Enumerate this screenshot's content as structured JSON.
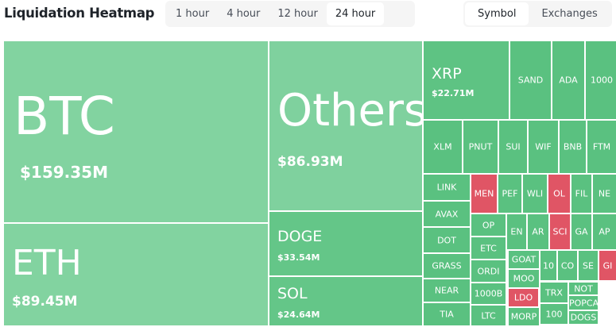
{
  "header": {
    "title": "Liquidation Heatmap",
    "time_tabs": [
      "1 hour",
      "4 hour",
      "12 hour",
      "24 hour"
    ],
    "time_selected": 3,
    "view_tabs": [
      "Symbol",
      "Exchanges"
    ],
    "view_selected": 0
  },
  "tiles": [
    {
      "label": "BTC",
      "value": "$159.35M",
      "color": "#82d3a0"
    },
    {
      "label": "ETH",
      "value": "$89.45M",
      "color": "#82d3a0"
    },
    {
      "label": "Others",
      "value": "$86.93M",
      "color": "#7fd19e"
    },
    {
      "label": "DOGE",
      "value": "$33.54M",
      "color": "#64c688"
    },
    {
      "label": "SOL",
      "value": "$24.64M",
      "color": "#64c688"
    },
    {
      "label": "XRP",
      "value": "$22.71M",
      "color": "#5ec383"
    },
    {
      "label": "SAND",
      "color": "#5ac180"
    },
    {
      "label": "ADA",
      "color": "#5ac180"
    },
    {
      "label": "1000",
      "color": "#5ac180"
    },
    {
      "label": "XLM",
      "color": "#5ac180"
    },
    {
      "label": "PNUT",
      "color": "#5ac180"
    },
    {
      "label": "SUI",
      "color": "#5ac180"
    },
    {
      "label": "WIF",
      "color": "#5ac180"
    },
    {
      "label": "BNB",
      "color": "#5ac180"
    },
    {
      "label": "FTM",
      "color": "#5ac180"
    },
    {
      "label": "LINK",
      "color": "#5ac180"
    },
    {
      "label": "AVAX",
      "color": "#5ac180"
    },
    {
      "label": "DOT",
      "color": "#5ac180"
    },
    {
      "label": "GRASS",
      "color": "#5ac180"
    },
    {
      "label": "NEAR",
      "color": "#5ac180"
    },
    {
      "label": "TIA",
      "color": "#5ac180"
    },
    {
      "label": "MEN",
      "color": "#e05565"
    },
    {
      "label": "PEF",
      "color": "#5ac180"
    },
    {
      "label": "WLI",
      "color": "#5ac180"
    },
    {
      "label": "OL",
      "color": "#e05565"
    },
    {
      "label": "FIL",
      "color": "#5ac180"
    },
    {
      "label": "NE",
      "color": "#5ac180"
    },
    {
      "label": "OP",
      "color": "#5ac180"
    },
    {
      "label": "ETC",
      "color": "#5ac180"
    },
    {
      "label": "ORDI",
      "color": "#5ac180"
    },
    {
      "label": "1000B",
      "color": "#5ac180"
    },
    {
      "label": "LTC",
      "color": "#5ac180"
    },
    {
      "label": "EN",
      "color": "#5ac180"
    },
    {
      "label": "AR",
      "color": "#5ac180"
    },
    {
      "label": "SCI",
      "color": "#e05565"
    },
    {
      "label": "GA",
      "color": "#5ac180"
    },
    {
      "label": "AP",
      "color": "#5ac180"
    },
    {
      "label": "GOAT",
      "color": "#5ac180"
    },
    {
      "label": "MOO",
      "color": "#5ac180"
    },
    {
      "label": "LDO",
      "color": "#e05565"
    },
    {
      "label": "MORP",
      "color": "#5ac180"
    },
    {
      "label": "10",
      "color": "#5ac180"
    },
    {
      "label": "CO",
      "color": "#5ac180"
    },
    {
      "label": "SE",
      "color": "#5ac180"
    },
    {
      "label": "GI",
      "color": "#e05565"
    },
    {
      "label": "TRX",
      "color": "#5ac180"
    },
    {
      "label": "100",
      "color": "#5ac180"
    },
    {
      "label": "NOT",
      "color": "#5ac180"
    },
    {
      "label": "POPCA",
      "color": "#5ac180"
    },
    {
      "label": "DOGS",
      "color": "#5ac180"
    }
  ]
}
